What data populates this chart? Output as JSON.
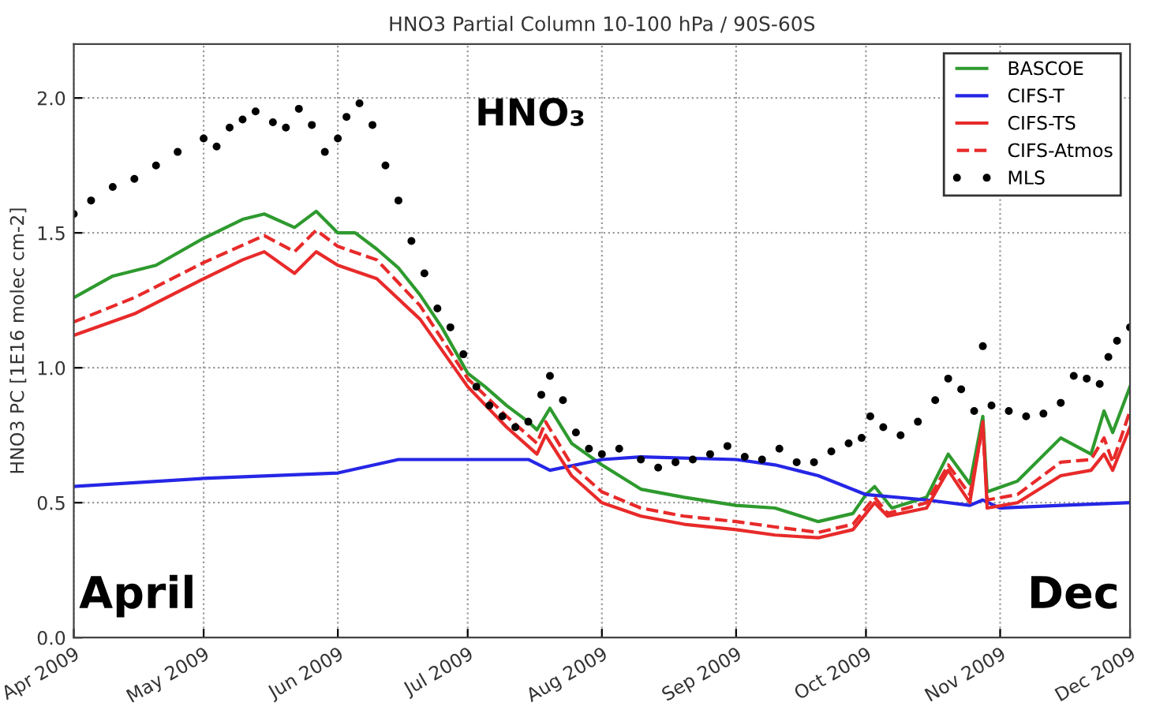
{
  "chart_data": {
    "type": "line",
    "title": "HNO3 Partial Column 10-100 hPa / 90S-60S",
    "ylabel": "HNO3 PC [1E16 molec cm-2]",
    "annotations": [
      "HNO₃",
      "April",
      "Dec"
    ],
    "xlim": [
      "2009-04-01",
      "2009-12-01"
    ],
    "ylim": [
      0,
      2.2
    ],
    "xticks": [
      {
        "value": "2009-04-01",
        "label": "Apr 2009"
      },
      {
        "value": "2009-05-01",
        "label": "May 2009"
      },
      {
        "value": "2009-06-01",
        "label": "Jun 2009"
      },
      {
        "value": "2009-07-01",
        "label": "Jul 2009"
      },
      {
        "value": "2009-08-01",
        "label": "Aug 2009"
      },
      {
        "value": "2009-09-01",
        "label": "Sep 2009"
      },
      {
        "value": "2009-10-01",
        "label": "Oct 2009"
      },
      {
        "value": "2009-11-01",
        "label": "Nov 2009"
      },
      {
        "value": "2009-12-01",
        "label": "Dec 2009"
      }
    ],
    "yticks": [
      {
        "value": 0,
        "label": "0.0"
      },
      {
        "value": 0.5,
        "label": "0.5"
      },
      {
        "value": 1,
        "label": "1.0"
      },
      {
        "value": 1.5,
        "label": "1.5"
      },
      {
        "value": 2,
        "label": "2.0"
      }
    ],
    "grid": true,
    "legend": "top right",
    "series": [
      {
        "name": "BASCOE",
        "color": "#2e9a2e",
        "line_style": "solid",
        "x": [
          "2009-04-01",
          "2009-04-10",
          "2009-04-20",
          "2009-05-01",
          "2009-05-10",
          "2009-05-15",
          "2009-05-22",
          "2009-05-27",
          "2009-06-01",
          "2009-06-05",
          "2009-06-10",
          "2009-06-15",
          "2009-06-20",
          "2009-06-25",
          "2009-07-01",
          "2009-07-05",
          "2009-07-10",
          "2009-07-15",
          "2009-07-17",
          "2009-07-20",
          "2009-07-25",
          "2009-08-01",
          "2009-08-10",
          "2009-08-20",
          "2009-09-01",
          "2009-09-10",
          "2009-09-20",
          "2009-09-28",
          "2009-10-01",
          "2009-10-03",
          "2009-10-07",
          "2009-10-15",
          "2009-10-20",
          "2009-10-25",
          "2009-10-28",
          "2009-10-29",
          "2009-11-05",
          "2009-11-15",
          "2009-11-22",
          "2009-11-25",
          "2009-11-27",
          "2009-12-01"
        ],
        "values": [
          1.26,
          1.34,
          1.38,
          1.48,
          1.55,
          1.57,
          1.52,
          1.58,
          1.5,
          1.5,
          1.44,
          1.37,
          1.27,
          1.15,
          0.98,
          0.93,
          0.86,
          0.8,
          0.77,
          0.85,
          0.72,
          0.64,
          0.55,
          0.52,
          0.49,
          0.48,
          0.43,
          0.46,
          0.53,
          0.56,
          0.48,
          0.52,
          0.68,
          0.57,
          0.82,
          0.54,
          0.58,
          0.74,
          0.68,
          0.84,
          0.76,
          0.93
        ]
      },
      {
        "name": "CIFS-T",
        "color": "#2626e6",
        "line_style": "solid",
        "x": [
          "2009-04-01",
          "2009-05-01",
          "2009-06-01",
          "2009-06-15",
          "2009-07-01",
          "2009-07-15",
          "2009-07-20",
          "2009-08-01",
          "2009-08-10",
          "2009-09-01",
          "2009-09-10",
          "2009-09-20",
          "2009-10-01",
          "2009-10-15",
          "2009-10-25",
          "2009-10-28",
          "2009-11-01",
          "2009-11-15",
          "2009-12-01"
        ],
        "values": [
          0.56,
          0.59,
          0.61,
          0.66,
          0.66,
          0.66,
          0.62,
          0.66,
          0.67,
          0.66,
          0.64,
          0.6,
          0.53,
          0.51,
          0.49,
          0.51,
          0.48,
          0.49,
          0.5
        ]
      },
      {
        "name": "CIFS-TS",
        "color": "#e82a2a",
        "line_style": "solid",
        "x": [
          "2009-04-01",
          "2009-04-15",
          "2009-05-01",
          "2009-05-10",
          "2009-05-15",
          "2009-05-22",
          "2009-05-27",
          "2009-06-01",
          "2009-06-10",
          "2009-06-20",
          "2009-07-01",
          "2009-07-10",
          "2009-07-17",
          "2009-07-19",
          "2009-07-25",
          "2009-08-01",
          "2009-08-10",
          "2009-08-20",
          "2009-09-01",
          "2009-09-10",
          "2009-09-20",
          "2009-09-28",
          "2009-10-01",
          "2009-10-03",
          "2009-10-06",
          "2009-10-15",
          "2009-10-20",
          "2009-10-25",
          "2009-10-28",
          "2009-10-29",
          "2009-11-05",
          "2009-11-15",
          "2009-11-22",
          "2009-11-25",
          "2009-11-27",
          "2009-12-01"
        ],
        "values": [
          1.12,
          1.2,
          1.33,
          1.4,
          1.43,
          1.35,
          1.43,
          1.38,
          1.33,
          1.18,
          0.93,
          0.78,
          0.68,
          0.75,
          0.6,
          0.5,
          0.45,
          0.42,
          0.4,
          0.38,
          0.37,
          0.4,
          0.46,
          0.5,
          0.45,
          0.48,
          0.62,
          0.5,
          0.8,
          0.48,
          0.5,
          0.6,
          0.62,
          0.68,
          0.62,
          0.78
        ]
      },
      {
        "name": "CIFS-Atmos",
        "color": "#e82a2a",
        "line_style": "dashed",
        "x": [
          "2009-04-01",
          "2009-04-15",
          "2009-05-01",
          "2009-05-15",
          "2009-05-22",
          "2009-05-27",
          "2009-06-01",
          "2009-06-10",
          "2009-06-20",
          "2009-07-01",
          "2009-07-10",
          "2009-07-17",
          "2009-07-19",
          "2009-07-25",
          "2009-08-01",
          "2009-08-10",
          "2009-08-20",
          "2009-09-01",
          "2009-09-10",
          "2009-09-20",
          "2009-09-28",
          "2009-10-01",
          "2009-10-03",
          "2009-10-06",
          "2009-10-15",
          "2009-10-20",
          "2009-10-25",
          "2009-10-28",
          "2009-10-29",
          "2009-11-05",
          "2009-11-15",
          "2009-11-22",
          "2009-11-25",
          "2009-11-27",
          "2009-12-01"
        ],
        "values": [
          1.17,
          1.26,
          1.39,
          1.49,
          1.43,
          1.51,
          1.45,
          1.4,
          1.23,
          0.96,
          0.82,
          0.72,
          0.8,
          0.64,
          0.54,
          0.48,
          0.45,
          0.43,
          0.41,
          0.39,
          0.42,
          0.48,
          0.52,
          0.46,
          0.5,
          0.64,
          0.53,
          0.78,
          0.51,
          0.53,
          0.65,
          0.66,
          0.74,
          0.65,
          0.84
        ]
      },
      {
        "name": "MLS",
        "type": "scatter",
        "marker": "circle",
        "color": "#000000",
        "x": [
          "2009-04-01",
          "2009-04-05",
          "2009-04-10",
          "2009-04-15",
          "2009-04-20",
          "2009-04-25",
          "2009-05-01",
          "2009-05-04",
          "2009-05-07",
          "2009-05-10",
          "2009-05-13",
          "2009-05-17",
          "2009-05-20",
          "2009-05-23",
          "2009-05-26",
          "2009-05-29",
          "2009-06-01",
          "2009-06-03",
          "2009-06-06",
          "2009-06-09",
          "2009-06-12",
          "2009-06-15",
          "2009-06-18",
          "2009-06-21",
          "2009-06-24",
          "2009-06-27",
          "2009-06-30",
          "2009-07-03",
          "2009-07-06",
          "2009-07-09",
          "2009-07-12",
          "2009-07-15",
          "2009-07-18",
          "2009-07-20",
          "2009-07-23",
          "2009-07-26",
          "2009-07-29",
          "2009-08-01",
          "2009-08-05",
          "2009-08-10",
          "2009-08-14",
          "2009-08-18",
          "2009-08-22",
          "2009-08-26",
          "2009-08-30",
          "2009-09-03",
          "2009-09-07",
          "2009-09-11",
          "2009-09-15",
          "2009-09-19",
          "2009-09-23",
          "2009-09-27",
          "2009-09-30",
          "2009-10-02",
          "2009-10-05",
          "2009-10-09",
          "2009-10-13",
          "2009-10-17",
          "2009-10-20",
          "2009-10-23",
          "2009-10-26",
          "2009-10-28",
          "2009-10-30",
          "2009-11-03",
          "2009-11-07",
          "2009-11-11",
          "2009-11-15",
          "2009-11-18",
          "2009-11-21",
          "2009-11-24",
          "2009-11-26",
          "2009-11-28",
          "2009-12-01"
        ],
        "values": [
          1.57,
          1.62,
          1.67,
          1.7,
          1.75,
          1.8,
          1.85,
          1.82,
          1.89,
          1.92,
          1.95,
          1.91,
          1.89,
          1.96,
          1.9,
          1.8,
          1.85,
          1.93,
          1.98,
          1.9,
          1.75,
          1.62,
          1.47,
          1.35,
          1.22,
          1.15,
          1.05,
          0.93,
          0.86,
          0.82,
          0.78,
          0.8,
          0.9,
          0.97,
          0.88,
          0.76,
          0.7,
          0.68,
          0.7,
          0.66,
          0.63,
          0.65,
          0.66,
          0.68,
          0.71,
          0.67,
          0.66,
          0.7,
          0.65,
          0.65,
          0.69,
          0.72,
          0.74,
          0.82,
          0.78,
          0.75,
          0.8,
          0.88,
          0.96,
          0.92,
          0.84,
          1.08,
          0.86,
          0.84,
          0.82,
          0.83,
          0.87,
          0.97,
          0.96,
          0.94,
          1.04,
          1.1,
          1.15
        ]
      }
    ]
  }
}
